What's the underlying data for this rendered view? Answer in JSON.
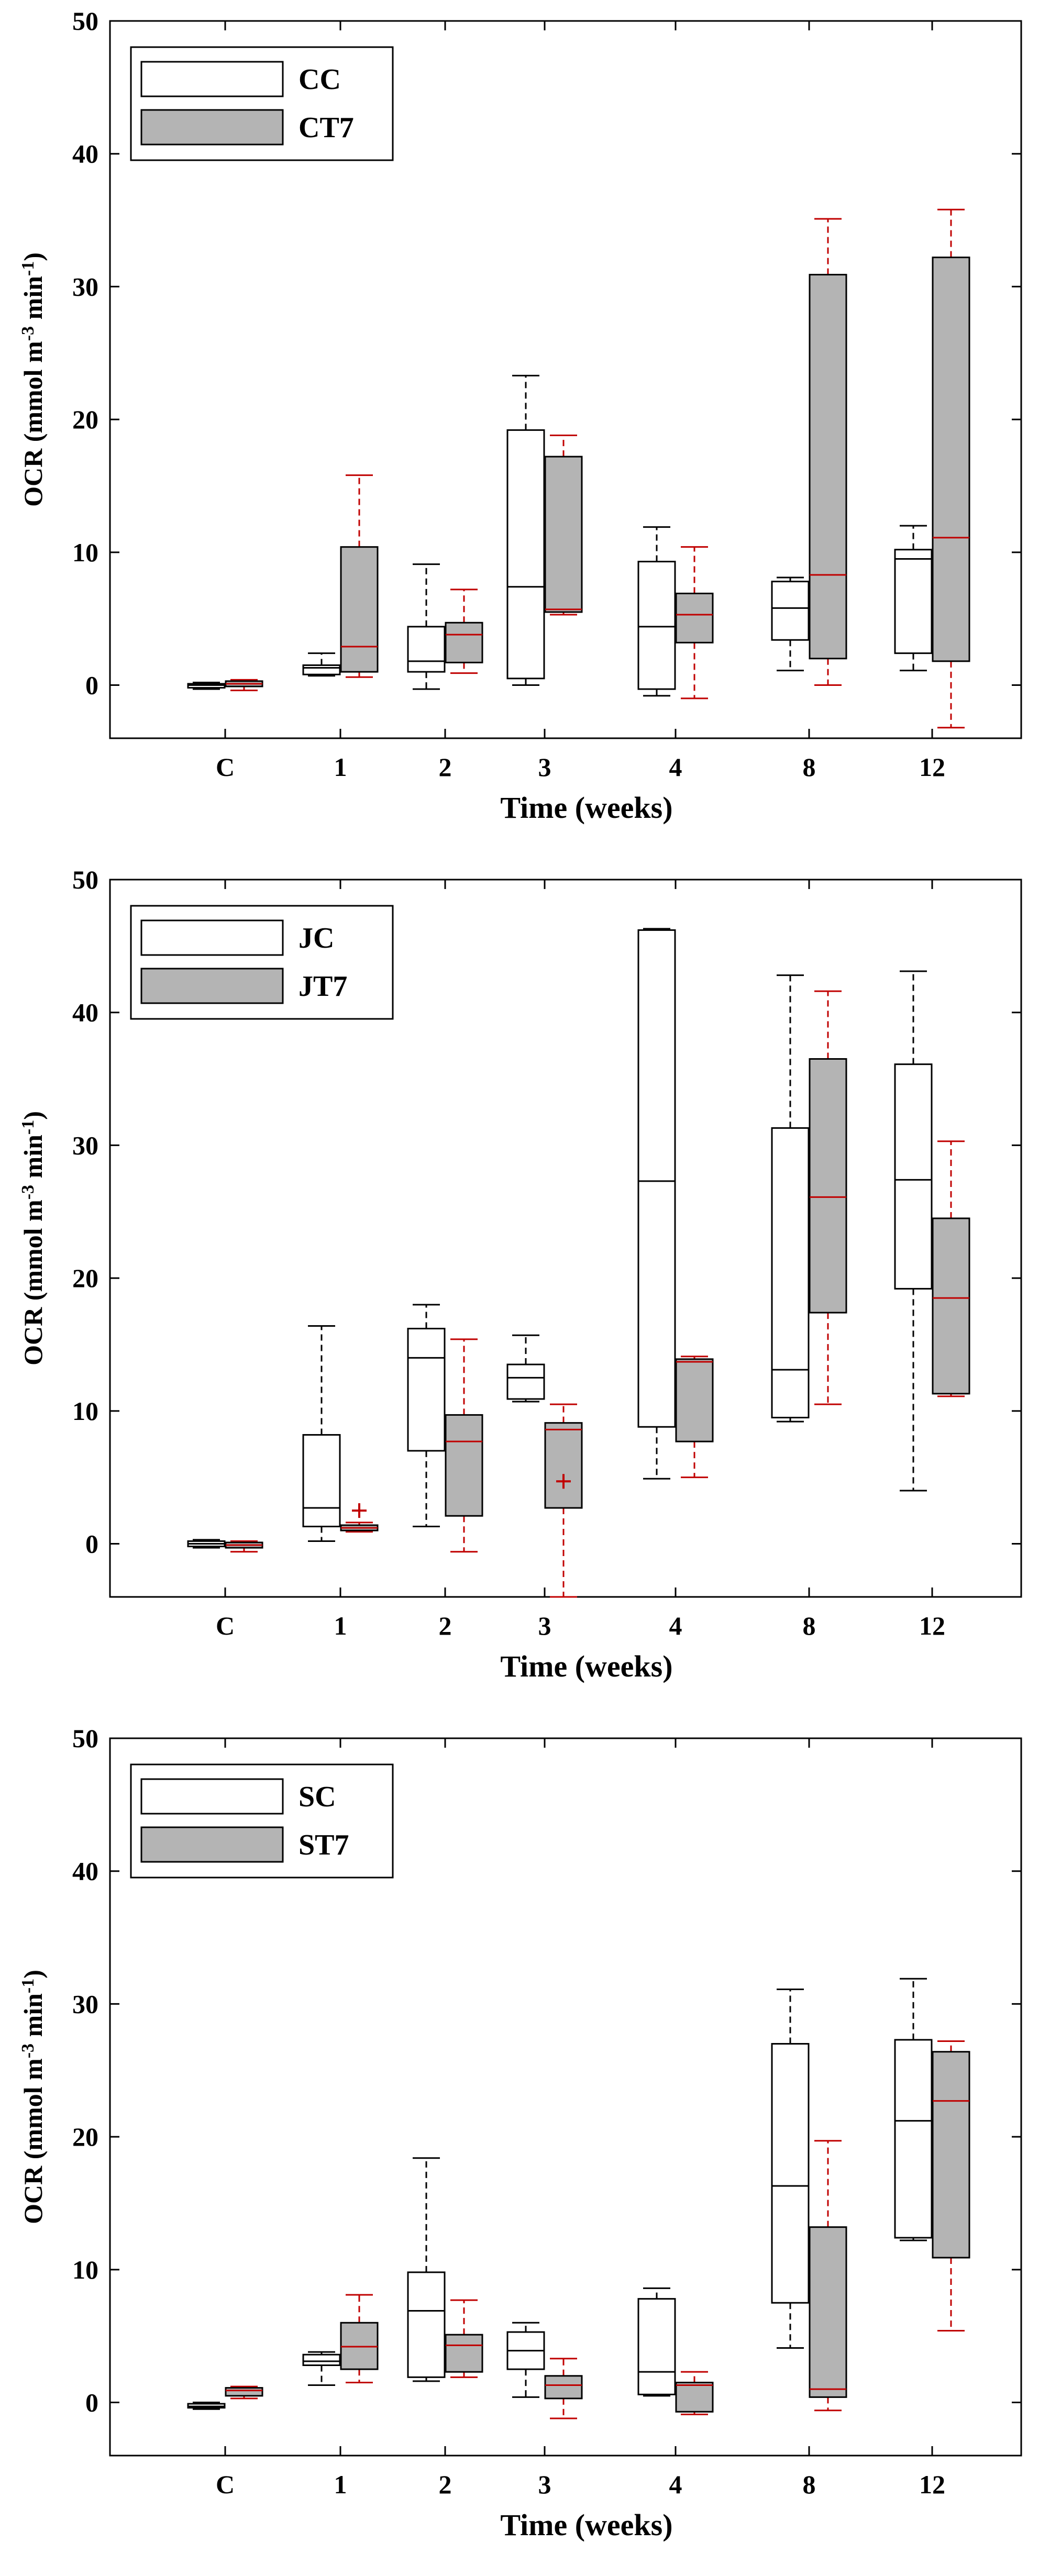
{
  "chart_data": [
    {
      "type": "box",
      "xlabel": "Time (weeks)",
      "ylabel": "OCR (mmol m^-3 min^-1)",
      "ylim": [
        -4,
        50
      ],
      "yticks": [
        0,
        10,
        20,
        30,
        40,
        50
      ],
      "categories": [
        "C",
        "1",
        "2",
        "3",
        "4",
        "8",
        "12"
      ],
      "legend_position": "top-left",
      "colors": {
        "control_fill": "#ffffff",
        "treated_fill": "#b4b4b4",
        "control_whisker": "#000000",
        "treated_whisker": "#c00000",
        "treated_median": "#c00000"
      },
      "series": [
        {
          "name": "CC",
          "boxes": [
            {
              "whislo": -0.3,
              "q1": -0.2,
              "med": 0,
              "q3": 0.1,
              "whishi": 0.2,
              "outliers": []
            },
            {
              "whislo": 0.7,
              "q1": 0.8,
              "med": 1.3,
              "q3": 1.5,
              "whishi": 2.4,
              "outliers": []
            },
            {
              "whislo": -0.3,
              "q1": 1,
              "med": 1.8,
              "q3": 4.4,
              "whishi": 9.1,
              "outliers": []
            },
            {
              "whislo": 0,
              "q1": 0.5,
              "med": 7.4,
              "q3": 19.2,
              "whishi": 23.3,
              "outliers": []
            },
            {
              "whislo": -0.8,
              "q1": -0.3,
              "med": 4.4,
              "q3": 9.3,
              "whishi": 11.9,
              "outliers": []
            },
            {
              "whislo": 1.1,
              "q1": 3.4,
              "med": 5.8,
              "q3": 7.8,
              "whishi": 8.1,
              "outliers": []
            },
            {
              "whislo": 1.1,
              "q1": 2.4,
              "med": 9.5,
              "q3": 10.2,
              "whishi": 12,
              "outliers": []
            }
          ]
        },
        {
          "name": "CT7",
          "boxes": [
            {
              "whislo": -0.4,
              "q1": -0.1,
              "med": 0.1,
              "q3": 0.3,
              "whishi": 0.4,
              "outliers": []
            },
            {
              "whislo": 0.6,
              "q1": 1,
              "med": 2.9,
              "q3": 10.4,
              "whishi": 15.8,
              "outliers": []
            },
            {
              "whislo": 0.9,
              "q1": 1.7,
              "med": 3.8,
              "q3": 4.7,
              "whishi": 7.2,
              "outliers": []
            },
            {
              "whislo": 5.3,
              "q1": 5.5,
              "med": 5.7,
              "q3": 17.2,
              "whishi": 18.8,
              "outliers": []
            },
            {
              "whislo": -1,
              "q1": 3.2,
              "med": 5.3,
              "q3": 6.9,
              "whishi": 10.4,
              "outliers": []
            },
            {
              "whislo": 0,
              "q1": 2,
              "med": 8.3,
              "q3": 30.9,
              "whishi": 35.1,
              "outliers": []
            },
            {
              "whislo": -3.2,
              "q1": 1.8,
              "med": 11.1,
              "q3": 32.2,
              "whishi": 35.8,
              "outliers": []
            }
          ]
        }
      ],
      "legend": [
        "CC",
        "CT7"
      ]
    },
    {
      "type": "box",
      "xlabel": "Time (weeks)",
      "ylabel": "OCR (mmol m^-3 min^-1)",
      "ylim": [
        -4,
        50
      ],
      "yticks": [
        0,
        10,
        20,
        30,
        40,
        50
      ],
      "categories": [
        "C",
        "1",
        "2",
        "3",
        "4",
        "8",
        "12"
      ],
      "legend_position": "top-left",
      "colors": {
        "control_fill": "#ffffff",
        "treated_fill": "#b4b4b4",
        "control_whisker": "#000000",
        "treated_whisker": "#c00000",
        "treated_median": "#c00000"
      },
      "series": [
        {
          "name": "JC",
          "boxes": [
            {
              "whislo": -0.3,
              "q1": -0.2,
              "med": 0,
              "q3": 0.2,
              "whishi": 0.3,
              "outliers": []
            },
            {
              "whislo": 0.2,
              "q1": 1.3,
              "med": 2.7,
              "q3": 8.2,
              "whishi": 16.4,
              "outliers": []
            },
            {
              "whislo": 1.3,
              "q1": 7,
              "med": 14,
              "q3": 16.2,
              "whishi": 18,
              "outliers": []
            },
            {
              "whislo": 10.7,
              "q1": 10.9,
              "med": 12.5,
              "q3": 13.5,
              "whishi": 15.7,
              "outliers": []
            },
            {
              "whislo": 4.9,
              "q1": 8.8,
              "med": 27.3,
              "q3": 46.2,
              "whishi": 46.3,
              "outliers": []
            },
            {
              "whislo": 9.2,
              "q1": 9.5,
              "med": 13.1,
              "q3": 31.3,
              "whishi": 42.8,
              "outliers": []
            },
            {
              "whislo": 4,
              "q1": 19.2,
              "med": 27.4,
              "q3": 36.1,
              "whishi": 43.1,
              "outliers": []
            }
          ]
        },
        {
          "name": "JT7",
          "boxes": [
            {
              "whislo": -0.6,
              "q1": -0.3,
              "med": -0.1,
              "q3": 0.1,
              "whishi": 0.2,
              "outliers": []
            },
            {
              "whislo": 0.9,
              "q1": 1,
              "med": 1.2,
              "q3": 1.4,
              "whishi": 1.6,
              "outliers": [
                2.5
              ]
            },
            {
              "whislo": -0.6,
              "q1": 2.1,
              "med": 7.7,
              "q3": 9.7,
              "whishi": 15.4,
              "outliers": []
            },
            {
              "whislo": -4,
              "q1": 2.7,
              "med": 8.6,
              "q3": 9.1,
              "whishi": 10.5,
              "outliers": [
                4.7
              ]
            },
            {
              "whislo": 5,
              "q1": 7.7,
              "med": 13.7,
              "q3": 13.9,
              "whishi": 14.1,
              "outliers": []
            },
            {
              "whislo": 10.5,
              "q1": 17.4,
              "med": 26.1,
              "q3": 36.5,
              "whishi": 41.6,
              "outliers": []
            },
            {
              "whislo": 11.1,
              "q1": 11.3,
              "med": 18.5,
              "q3": 24.5,
              "whishi": 30.3,
              "outliers": []
            }
          ]
        }
      ],
      "legend": [
        "JC",
        "JT7"
      ]
    },
    {
      "type": "box",
      "xlabel": "Time (weeks)",
      "ylabel": "OCR (mmol m^-3 min^-1)",
      "ylim": [
        -4,
        50
      ],
      "yticks": [
        0,
        10,
        20,
        30,
        40,
        50
      ],
      "categories": [
        "C",
        "1",
        "2",
        "3",
        "4",
        "8",
        "12"
      ],
      "legend_position": "top-left",
      "colors": {
        "control_fill": "#ffffff",
        "treated_fill": "#b4b4b4",
        "control_whisker": "#000000",
        "treated_whisker": "#c00000",
        "treated_median": "#c00000"
      },
      "series": [
        {
          "name": "SC",
          "boxes": [
            {
              "whislo": -0.5,
              "q1": -0.4,
              "med": -0.3,
              "q3": -0.1,
              "whishi": 0,
              "outliers": []
            },
            {
              "whislo": 1.3,
              "q1": 2.8,
              "med": 3.1,
              "q3": 3.6,
              "whishi": 3.8,
              "outliers": []
            },
            {
              "whislo": 1.6,
              "q1": 1.9,
              "med": 6.9,
              "q3": 9.8,
              "whishi": 18.4,
              "outliers": []
            },
            {
              "whislo": 0.4,
              "q1": 2.5,
              "med": 3.9,
              "q3": 5.3,
              "whishi": 6,
              "outliers": []
            },
            {
              "whislo": 0.5,
              "q1": 0.6,
              "med": 2.3,
              "q3": 7.8,
              "whishi": 8.6,
              "outliers": []
            },
            {
              "whislo": 4.1,
              "q1": 7.5,
              "med": 16.3,
              "q3": 27,
              "whishi": 31.1,
              "outliers": []
            },
            {
              "whislo": 12.2,
              "q1": 12.4,
              "med": 21.2,
              "q3": 27.3,
              "whishi": 31.9,
              "outliers": []
            }
          ]
        },
        {
          "name": "ST7",
          "boxes": [
            {
              "whislo": 0.3,
              "q1": 0.5,
              "med": 0.9,
              "q3": 1.1,
              "whishi": 1.2,
              "outliers": []
            },
            {
              "whislo": 1.5,
              "q1": 2.5,
              "med": 4.2,
              "q3": 6,
              "whishi": 8.1,
              "outliers": []
            },
            {
              "whislo": 1.9,
              "q1": 2.3,
              "med": 4.3,
              "q3": 5.1,
              "whishi": 7.7,
              "outliers": []
            },
            {
              "whislo": -1.2,
              "q1": 0.3,
              "med": 1.3,
              "q3": 2,
              "whishi": 3.3,
              "outliers": []
            },
            {
              "whislo": -0.9,
              "q1": -0.7,
              "med": 1.3,
              "q3": 1.5,
              "whishi": 2.3,
              "outliers": []
            },
            {
              "whislo": -0.6,
              "q1": 0.4,
              "med": 1,
              "q3": 13.2,
              "whishi": 19.7,
              "outliers": []
            },
            {
              "whislo": 5.4,
              "q1": 10.9,
              "med": 22.7,
              "q3": 26.4,
              "whishi": 27.2,
              "outliers": []
            }
          ]
        }
      ],
      "legend": [
        "SC",
        "ST7"
      ]
    }
  ]
}
